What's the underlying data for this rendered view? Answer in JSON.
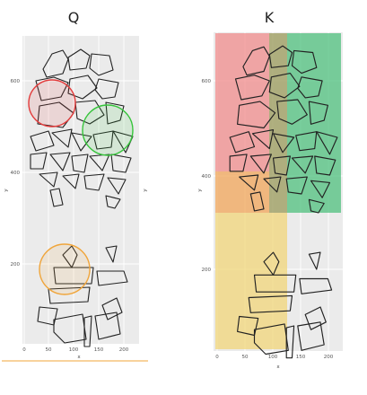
{
  "panels": [
    {
      "title": "Q",
      "x_label": "x",
      "y_label": "y",
      "x_ticks": [
        "0",
        "50",
        "100",
        "150",
        "200"
      ],
      "y_ticks": [
        "200",
        "400",
        "600"
      ],
      "circles": [
        {
          "color": "#e33b3b"
        },
        {
          "color": "#35c43a"
        },
        {
          "color": "#f0a53a"
        }
      ]
    },
    {
      "title": "K",
      "x_label": "x",
      "y_label": "y",
      "x_ticks": [
        "0",
        "50",
        "100",
        "150",
        "200"
      ],
      "y_ticks": [
        "200",
        "400",
        "600"
      ],
      "regions": [
        {
          "color": "#f08c8c"
        },
        {
          "color": "#4fc07e"
        },
        {
          "color": "#f2a55a"
        },
        {
          "color": "#f2d67a"
        },
        {
          "color": "#9a9a5a"
        }
      ]
    }
  ]
}
